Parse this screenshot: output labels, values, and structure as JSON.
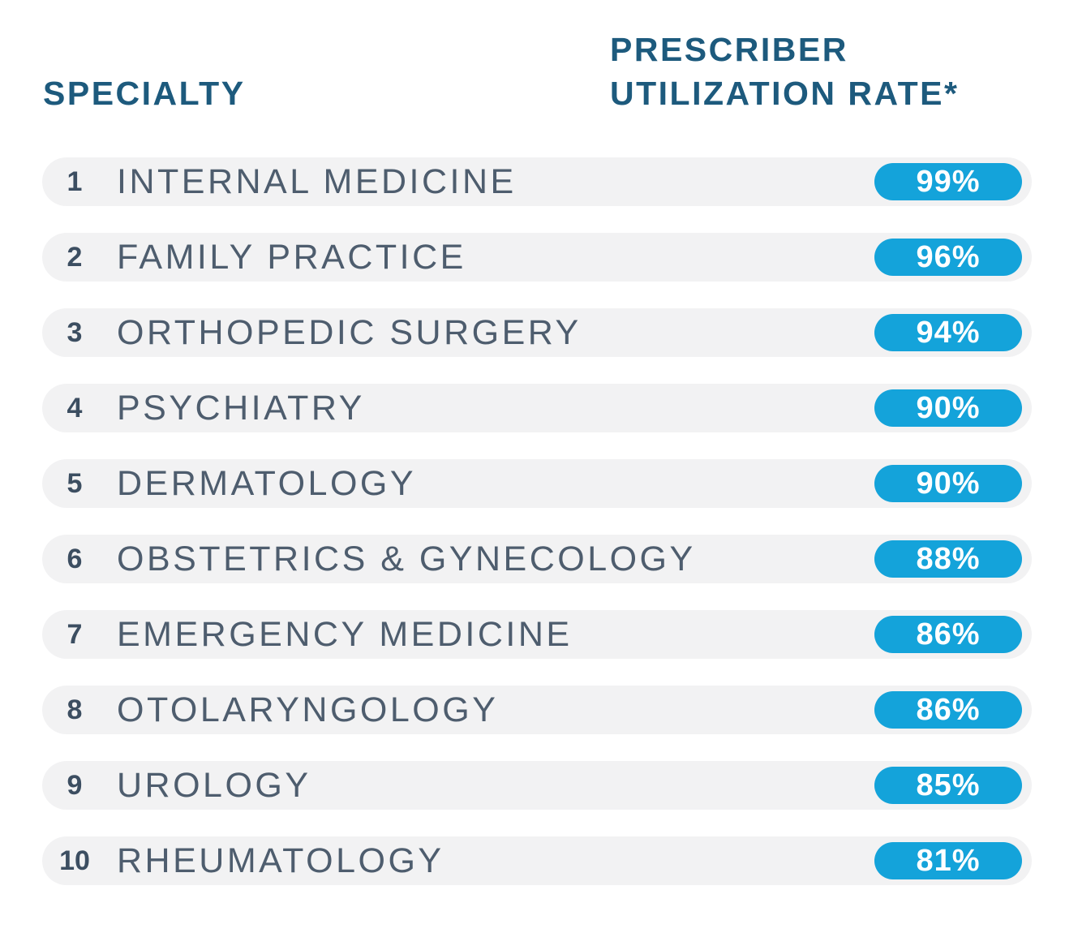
{
  "header": {
    "specialty_label": "SPECIALTY",
    "rate_label_line1": "PRESCRIBER",
    "rate_label_line2": "UTILIZATION RATE*"
  },
  "rows": [
    {
      "rank": "1",
      "specialty": "INTERNAL MEDICINE",
      "rate": "99%"
    },
    {
      "rank": "2",
      "specialty": "FAMILY PRACTICE",
      "rate": "96%"
    },
    {
      "rank": "3",
      "specialty": "ORTHOPEDIC SURGERY",
      "rate": "94%"
    },
    {
      "rank": "4",
      "specialty": "PSYCHIATRY",
      "rate": "90%"
    },
    {
      "rank": "5",
      "specialty": "DERMATOLOGY",
      "rate": "90%"
    },
    {
      "rank": "6",
      "specialty": "OBSTETRICS & GYNECOLOGY",
      "rate": "88%"
    },
    {
      "rank": "7",
      "specialty": "EMERGENCY MEDICINE",
      "rate": "86%"
    },
    {
      "rank": "8",
      "specialty": "OTOLARYNGOLOGY",
      "rate": "86%"
    },
    {
      "rank": "9",
      "specialty": "UROLOGY",
      "rate": "85%"
    },
    {
      "rank": "10",
      "specialty": "RHEUMATOLOGY",
      "rate": "81%"
    }
  ],
  "colors": {
    "page_bg": "#ffffff",
    "header_text": "#1d5a7d",
    "rank_text": "#3c4e61",
    "specialty_text": "#4e5d6e",
    "row_bg": "#f2f2f3",
    "badge_bg": "#14a3da",
    "badge_text": "#ffffff"
  },
  "chart_data": {
    "type": "table",
    "title": "",
    "column_headers": [
      "SPECIALTY",
      "PRESCRIBER UTILIZATION RATE*"
    ],
    "categories": [
      "INTERNAL MEDICINE",
      "FAMILY PRACTICE",
      "ORTHOPEDIC SURGERY",
      "PSYCHIATRY",
      "DERMATOLOGY",
      "OBSTETRICS & GYNECOLOGY",
      "EMERGENCY MEDICINE",
      "OTOLARYNGOLOGY",
      "UROLOGY",
      "RHEUMATOLOGY"
    ],
    "ranks": [
      1,
      2,
      3,
      4,
      5,
      6,
      7,
      8,
      9,
      10
    ],
    "values": [
      99,
      96,
      94,
      90,
      90,
      88,
      86,
      86,
      85,
      81
    ],
    "value_unit": "%",
    "legend_position": "none",
    "grid": false
  }
}
